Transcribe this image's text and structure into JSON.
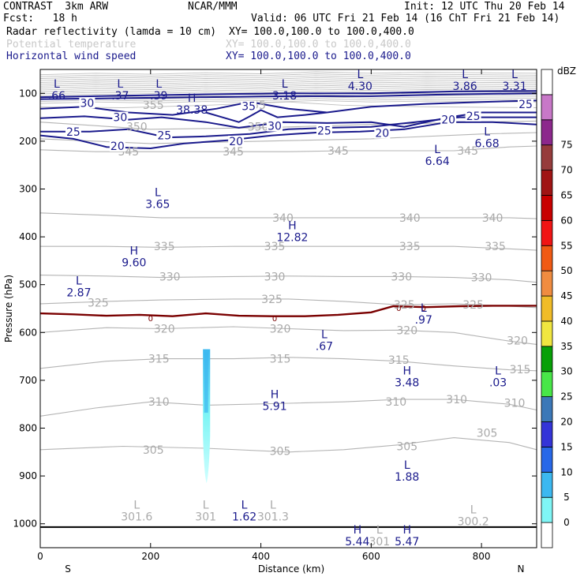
{
  "header": {
    "model": "CONTRAST  3km ARW",
    "org": "NCAR/MMM",
    "init": "Init: 12 UTC Thu 20 Feb 14",
    "fcst": "Fcst:   18 h",
    "valid": "Valid: 06 UTC Fri 21 Feb 14 (16 ChT Fri 21 Feb 14)",
    "fields": [
      {
        "name": "Radar reflectivity (lamda = 10 cm)",
        "xy": "XY= 100.0,100.0 to 100.0,400.0",
        "color": "#000000"
      },
      {
        "name": "Potential temperature",
        "xy": "XY= 100.0,100.0 to 100.0,400.0",
        "color": "#c8c8c8"
      },
      {
        "name": "Horizontal wind speed",
        "xy": "XY= 100.0,100.0 to 100.0,400.0",
        "color": "#1a1a8c"
      }
    ]
  },
  "chart_data": {
    "type": "cross-section",
    "xlabel": "Distance (km)",
    "ylabel": "Pressure (hPa)",
    "xlim": [
      0,
      900
    ],
    "ylim": [
      1050,
      50
    ],
    "xticks": [
      0,
      200,
      400,
      600,
      800
    ],
    "yticks": [
      100,
      200,
      300,
      400,
      500,
      600,
      700,
      800,
      900,
      1000
    ],
    "x_end_labels": {
      "left": "S",
      "right": "N"
    },
    "colorbar": {
      "unit": "dBZ",
      "levels": [
        0,
        5,
        10,
        15,
        20,
        25,
        30,
        35,
        40,
        45,
        50,
        55,
        60,
        65,
        70,
        75
      ],
      "colors": [
        "#ffffff",
        "#7ff5f5",
        "#3cb8f0",
        "#2868e8",
        "#3434d8",
        "#3c78b8",
        "#48e648",
        "#08a008",
        "#f0e640",
        "#f0bc28",
        "#f08c40",
        "#f05a14",
        "#f01414",
        "#c80000",
        "#a01414",
        "#963c3c",
        "#8c288c",
        "#c878c8",
        "#ffffff"
      ]
    },
    "theta_labels": [
      {
        "x": 205,
        "p": 124,
        "v": "355"
      },
      {
        "x": 390,
        "p": 124,
        "v": "355"
      },
      {
        "x": 175,
        "p": 170,
        "v": "350"
      },
      {
        "x": 395,
        "p": 170,
        "v": "350"
      },
      {
        "x": 160,
        "p": 222,
        "v": "345"
      },
      {
        "x": 350,
        "p": 222,
        "v": "345"
      },
      {
        "x": 540,
        "p": 220,
        "v": "345"
      },
      {
        "x": 775,
        "p": 220,
        "v": "345"
      },
      {
        "x": 440,
        "p": 360,
        "v": "340"
      },
      {
        "x": 670,
        "p": 360,
        "v": "340"
      },
      {
        "x": 820,
        "p": 360,
        "v": "340"
      },
      {
        "x": 225,
        "p": 420,
        "v": "335"
      },
      {
        "x": 425,
        "p": 420,
        "v": "335"
      },
      {
        "x": 670,
        "p": 420,
        "v": "335"
      },
      {
        "x": 825,
        "p": 420,
        "v": "335"
      },
      {
        "x": 235,
        "p": 483,
        "v": "330"
      },
      {
        "x": 425,
        "p": 483,
        "v": "330"
      },
      {
        "x": 655,
        "p": 483,
        "v": "330"
      },
      {
        "x": 800,
        "p": 485,
        "v": "330"
      },
      {
        "x": 105,
        "p": 538,
        "v": "325"
      },
      {
        "x": 420,
        "p": 530,
        "v": "325"
      },
      {
        "x": 660,
        "p": 542,
        "v": "325"
      },
      {
        "x": 785,
        "p": 542,
        "v": "325"
      },
      {
        "x": 225,
        "p": 592,
        "v": "320"
      },
      {
        "x": 435,
        "p": 592,
        "v": "320"
      },
      {
        "x": 665,
        "p": 595,
        "v": "320"
      },
      {
        "x": 865,
        "p": 617,
        "v": "320"
      },
      {
        "x": 215,
        "p": 655,
        "v": "315"
      },
      {
        "x": 435,
        "p": 655,
        "v": "315"
      },
      {
        "x": 650,
        "p": 657,
        "v": "315"
      },
      {
        "x": 870,
        "p": 677,
        "v": "315"
      },
      {
        "x": 215,
        "p": 745,
        "v": "310"
      },
      {
        "x": 645,
        "p": 745,
        "v": "310"
      },
      {
        "x": 755,
        "p": 740,
        "v": "310"
      },
      {
        "x": 860,
        "p": 747,
        "v": "310"
      },
      {
        "x": 205,
        "p": 845,
        "v": "305"
      },
      {
        "x": 435,
        "p": 848,
        "v": "305"
      },
      {
        "x": 665,
        "p": 838,
        "v": "305"
      },
      {
        "x": 810,
        "p": 810,
        "v": "305"
      }
    ],
    "wind_labels": [
      {
        "x": 85,
        "p": 120,
        "v": "30"
      },
      {
        "x": 145,
        "p": 150,
        "v": "30"
      },
      {
        "x": 60,
        "p": 180,
        "v": "25"
      },
      {
        "x": 225,
        "p": 188,
        "v": "25"
      },
      {
        "x": 140,
        "p": 210,
        "v": "20"
      },
      {
        "x": 355,
        "p": 200,
        "v": "20"
      },
      {
        "x": 378,
        "p": 127,
        "v": "35"
      },
      {
        "x": 425,
        "p": 168,
        "v": "30"
      },
      {
        "x": 515,
        "p": 178,
        "v": "25"
      },
      {
        "x": 620,
        "p": 183,
        "v": "20"
      },
      {
        "x": 740,
        "p": 155,
        "v": "20"
      },
      {
        "x": 785,
        "p": 147,
        "v": "25"
      },
      {
        "x": 880,
        "p": 123,
        "v": "25"
      }
    ],
    "zero_labels": [
      {
        "x": 200,
        "p": 570,
        "v": "0"
      },
      {
        "x": 425,
        "p": 570,
        "v": "0"
      },
      {
        "x": 650,
        "p": 548,
        "v": "0"
      },
      {
        "x": 695,
        "p": 548,
        "v": "0"
      }
    ],
    "hl_markers": [
      {
        "x": 30,
        "p": 88,
        "type": "L",
        "value": ".66",
        "color": "#1a1a8c"
      },
      {
        "x": 145,
        "p": 88,
        "type": "L",
        "value": ".37",
        "color": "#1a1a8c"
      },
      {
        "x": 215,
        "p": 88,
        "type": "L",
        "value": ".39",
        "color": "#1a1a8c"
      },
      {
        "x": 443,
        "p": 88,
        "type": "L",
        "value": "3.18",
        "color": "#1a1a8c"
      },
      {
        "x": 580,
        "p": 68,
        "type": "L",
        "value": "4.30",
        "color": "#1a1a8c"
      },
      {
        "x": 770,
        "p": 68,
        "type": "L",
        "value": "3.86",
        "color": "#1a1a8c"
      },
      {
        "x": 860,
        "p": 68,
        "type": "L",
        "value": "3.31",
        "color": "#1a1a8c"
      },
      {
        "x": 275,
        "p": 118,
        "type": "H",
        "value": "38.38",
        "color": "#1a1a8c"
      },
      {
        "x": 810,
        "p": 188,
        "type": "L",
        "value": "6.68",
        "color": "#1a1a8c"
      },
      {
        "x": 720,
        "p": 225,
        "type": "L",
        "value": "6.64",
        "color": "#1a1a8c"
      },
      {
        "x": 213,
        "p": 315,
        "type": "L",
        "value": "3.65",
        "color": "#1a1a8c"
      },
      {
        "x": 457,
        "p": 384,
        "type": "H",
        "value": "12.82",
        "color": "#1a1a8c"
      },
      {
        "x": 170,
        "p": 437,
        "type": "H",
        "value": "9.60",
        "color": "#1a1a8c"
      },
      {
        "x": 70,
        "p": 500,
        "type": "L",
        "value": "2.87",
        "color": "#1a1a8c"
      },
      {
        "x": 695,
        "p": 557,
        "type": "L",
        "value": ".97",
        "color": "#1a1a8c"
      },
      {
        "x": 515,
        "p": 612,
        "type": "L",
        "value": ".67",
        "color": "#1a1a8c"
      },
      {
        "x": 665,
        "p": 688,
        "type": "H",
        "value": "3.48",
        "color": "#1a1a8c"
      },
      {
        "x": 830,
        "p": 688,
        "type": "L",
        "value": ".03",
        "color": "#1a1a8c"
      },
      {
        "x": 425,
        "p": 737,
        "type": "H",
        "value": "5.91",
        "color": "#1a1a8c"
      },
      {
        "x": 665,
        "p": 885,
        "type": "L",
        "value": "1.88",
        "color": "#1a1a8c"
      },
      {
        "x": 175,
        "p": 968,
        "type": "L",
        "value": "301.6",
        "color": "#aaaaaa"
      },
      {
        "x": 300,
        "p": 968,
        "type": "L",
        "value": "301",
        "color": "#aaaaaa"
      },
      {
        "x": 370,
        "p": 968,
        "type": "L",
        "value": "1.62",
        "color": "#1a1a8c"
      },
      {
        "x": 422,
        "p": 968,
        "type": "L",
        "value": "301.3",
        "color": "#aaaaaa"
      },
      {
        "x": 785,
        "p": 978,
        "type": "L",
        "value": "300.2",
        "color": "#aaaaaa"
      },
      {
        "x": 575,
        "p": 1020,
        "type": "H",
        "value": "5.44",
        "color": "#1a1a8c"
      },
      {
        "x": 615,
        "p": 1020,
        "type": "L",
        "value": "301",
        "color": "#aaaaaa"
      },
      {
        "x": 665,
        "p": 1020,
        "type": "H",
        "value": "5.47",
        "color": "#1a1a8c"
      }
    ],
    "freezing_line": [
      [
        0,
        560
      ],
      [
        60,
        562
      ],
      [
        120,
        565
      ],
      [
        180,
        563
      ],
      [
        240,
        566
      ],
      [
        300,
        560
      ],
      [
        360,
        565
      ],
      [
        420,
        566
      ],
      [
        480,
        566
      ],
      [
        540,
        563
      ],
      [
        600,
        558
      ],
      [
        640,
        545
      ],
      [
        700,
        547
      ],
      [
        760,
        545
      ],
      [
        820,
        544
      ],
      [
        900,
        544
      ]
    ],
    "surface_line": [
      [
        0,
        1007
      ],
      [
        900,
        1007
      ]
    ],
    "reflectivity": {
      "x_range": [
        295,
        308
      ],
      "p_top": 635,
      "p_bottom": 915,
      "dbz_max": 15
    }
  }
}
